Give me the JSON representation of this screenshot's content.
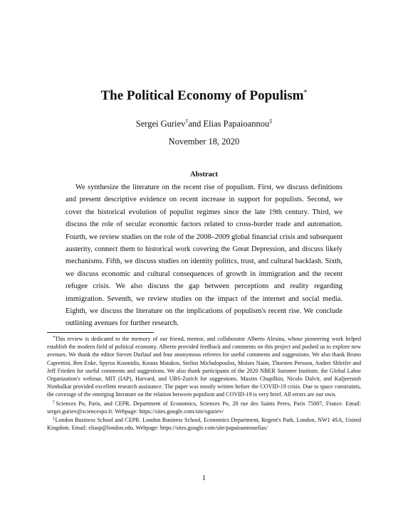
{
  "paper": {
    "title": "The Political Economy of Populism",
    "title_mark": "*",
    "authors": [
      {
        "name": "Sergei Guriev",
        "mark": "†"
      },
      {
        "connector": "and "
      },
      {
        "name": "Elias Papaioannou",
        "mark": "‡"
      }
    ],
    "date": "November 18, 2020",
    "abstract_heading": "Abstract",
    "abstract_text": "We synthesize the literature on the recent rise of populism. First, we discuss definitions and present descriptive evidence on recent increase in support for populists. Second, we cover the historical evolution of populist regimes since the late 19th century. Third, we discuss the role of secular economic factors related to cross-border trade and automation. Fourth, we review studies on the role of the 2008–2009 global financial crisis and subsequent austerity, connect them to historical work covering the Great Depression, and discuss likely mechanisms. Fifth, we discuss studies on identity politics, trust, and cultural backlash. Sixth, we discuss economic and cultural consequences of growth in immigration and the recent refugee crisis. We also discuss the gap between perceptions and reality regarding immigration. Seventh, we review studies on the impact of the internet and social media. Eighth, we discuss the literature on the implications of populism's recent rise. We conclude outlining avenues for further research.",
    "footnotes": [
      {
        "mark": "*",
        "text": "This review is dedicated to the memory of our friend, mentor, and collaborator Alberto Alesina, whose pioneering work helped establish the modern field of political economy. Alberto provided feedback and comments on this project and pushed us to explore new avenues. We thank the editor Steven Durlauf and four anonymous referees for useful comments and suggestions. We also thank Bruno Caprettini, Ben Enke, Spyros Kosmidis, Kostas Matakos, Stelios Michalopoulos, Moises Naim, Thorsten Persson, Andrei Shleifer and Jeff Frieden for useful comments and suggestions. We also thank participants of the 2020 NBER Summer Institute, the Global Labor Organization's webinar, MIT (IAP), Harvard, and UBS-Zurich for suggestions. Maxim Chupilkin, Nicolo Dalvit, and Kuljeetsinh Nimbalkar provided excellent research assistance. The paper was mostly written before the COVID-19 crisis. Due to space constraints, the coverage of the emerging literature on the relation between populism and COVID-19 is very brief. All errors are our own."
      },
      {
        "mark": "†",
        "text": "Sciences Po, Paris, and CEPR. Department of Economics, Sciences Po, 28 rue des Saints Peres, Paris 75007, France. Email: sergei.guriev@sciencespo.fr. Webpage: https://sites.google.com/site/sguriev/"
      },
      {
        "mark": "‡",
        "text": "London Business School and CEPR. London Business School, Economics Department, Regent's Park, London, NW1 4SA, United Kingdom. Email: eliasp@london.edu. Webpage: https://sites.google.com/site/papaioannouelias/"
      }
    ],
    "page_number": "1"
  }
}
